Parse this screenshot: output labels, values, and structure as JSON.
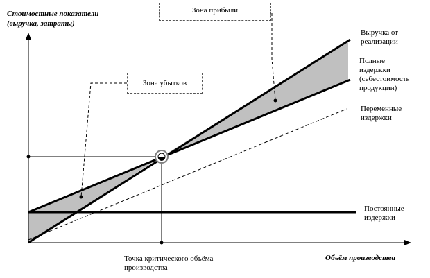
{
  "y_axis_label_line1": "Стоимостные показатели",
  "y_axis_label_line2": "(выручка, затраты)",
  "x_axis_label": "Объём производства",
  "zones": {
    "profit": "Зона прибыли",
    "loss": "Зона убытков"
  },
  "breakeven_label_line1": "Точка критического объёма",
  "breakeven_label_line2": "производства",
  "series_labels": {
    "revenue_line1": "Выручка от",
    "revenue_line2": "реализации",
    "total_line1": "Полные",
    "total_line2": "издержки",
    "total_line3": "(себестоимость",
    "total_line4": "продукции)",
    "variable_line1": "Переменные",
    "variable_line2": "издержки",
    "fixed_line1": "Постоянные",
    "fixed_line2": "издержки"
  },
  "colors": {
    "line": "#000000",
    "zone_fill": "#c0c0c0",
    "breakeven_marker": "#808080"
  }
}
